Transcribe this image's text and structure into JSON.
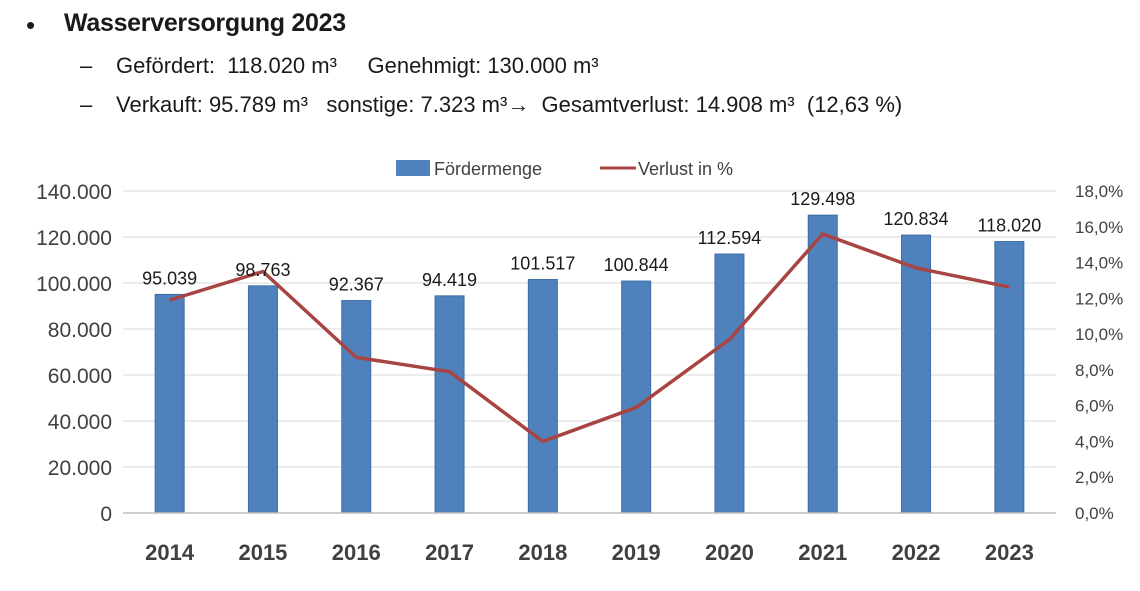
{
  "slide": {
    "bullet": "•",
    "heading": "Wasserversorgung 2023",
    "sub_items": [
      {
        "dash": "–",
        "text": "Gefördert:  118.020 m³     Genehmigt: 130.000 m³"
      },
      {
        "dash": "–",
        "text": "Verkauft: 95.789 m³   sonstige: 7.323 m³→  Gesamtverlust: 14.908 m³  (12,63 %)"
      }
    ]
  },
  "colors": {
    "bar": "#4f81bd",
    "line": "#a84442",
    "grid": "#d9d9d9"
  },
  "chart_data": {
    "type": "bar",
    "title": "",
    "xlabel": "",
    "ylabel": "",
    "categories": [
      "2014",
      "2015",
      "2016",
      "2017",
      "2018",
      "2019",
      "2020",
      "2021",
      "2022",
      "2023"
    ],
    "series": [
      {
        "name": "Fördermenge",
        "type": "bar",
        "axis": "left",
        "values": [
          95039,
          98763,
          92367,
          94419,
          101517,
          100844,
          112594,
          129498,
          120834,
          118020
        ],
        "labels": [
          "95.039",
          "98.763",
          "92.367",
          "94.419",
          "101.517",
          "100.844",
          "112.594",
          "129.498",
          "120.834",
          "118.020"
        ]
      },
      {
        "name": "Verlust in %",
        "type": "line",
        "axis": "right",
        "values": [
          11.9,
          13.5,
          8.7,
          7.9,
          4.0,
          5.9,
          9.7,
          15.6,
          13.7,
          12.63
        ]
      }
    ],
    "ylim": [
      0,
      140000
    ],
    "y_ticks": [
      "0",
      "20.000",
      "40.000",
      "60.000",
      "80.000",
      "100.000",
      "120.000",
      "140.000"
    ],
    "y2lim": [
      0,
      18
    ],
    "y2_ticks": [
      "0,0%",
      "2,0%",
      "4,0%",
      "6,0%",
      "8,0%",
      "10,0%",
      "12,0%",
      "14,0%",
      "16,0%",
      "18,0%"
    ],
    "grid": true,
    "legend": {
      "position": "top",
      "entries": [
        "Fördermenge",
        "Verlust in %"
      ]
    }
  }
}
